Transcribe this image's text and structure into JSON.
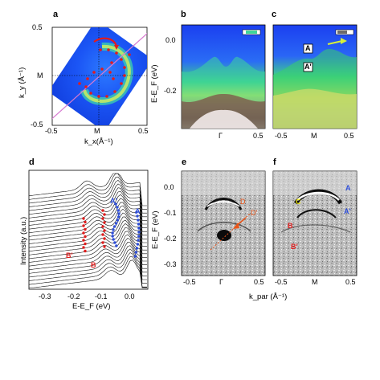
{
  "panels": {
    "a": {
      "label": "a",
      "y_ticks": [
        "0.5",
        "M",
        "-0.5"
      ],
      "x_ticks": [
        "-0.5",
        "M",
        "0.5"
      ],
      "xlabel": "k_x(Å⁻¹)",
      "ylabel": "k_y (Å⁻¹)"
    },
    "b": {
      "label": "b",
      "y_ticks": [
        "0.0",
        "-0.2"
      ],
      "x_ticks": [
        "Γ",
        "0.5"
      ],
      "ylabel": "E-E_F (eV)"
    },
    "c": {
      "label": "c",
      "x_ticks": [
        "-0.5",
        "M",
        "0.5"
      ],
      "annot_A": "A",
      "annot_A2": "A'"
    },
    "d": {
      "label": "d",
      "ylabel": "Intensity (a.u.)",
      "xlabel": "E-E_F (eV)",
      "x_ticks": [
        "-0.3",
        "-0.2",
        "-0.1",
        "0.0"
      ],
      "annot_A": "A",
      "annot_A2": "A'",
      "annot_B": "B",
      "annot_B2": "B'",
      "colors": {
        "blue": "#2f4fd8",
        "red": "#e01f1f"
      }
    },
    "e": {
      "label": "e",
      "y_ticks": [
        "0.0",
        "-0.1",
        "-0.2",
        "-0.3"
      ],
      "x_ticks": [
        "-0.5",
        "Γ",
        "0.5"
      ],
      "ylabel": "E-E_F (eV)",
      "annot_D": "D",
      "annot_D2": "D'",
      "color": "#e8551a"
    },
    "f": {
      "label": "f",
      "x_ticks": [
        "-0.5",
        "M",
        "0.5"
      ],
      "annot_A": "A",
      "annot_A2": "A'",
      "annot_B": "B",
      "annot_B2": "B'",
      "annot_C": "C",
      "colors": {
        "blue": "#2f4fd8",
        "red": "#e01f1f",
        "yellow": "#e6e000"
      }
    }
  },
  "shared_xlabel": "k_par (Å⁻¹)"
}
